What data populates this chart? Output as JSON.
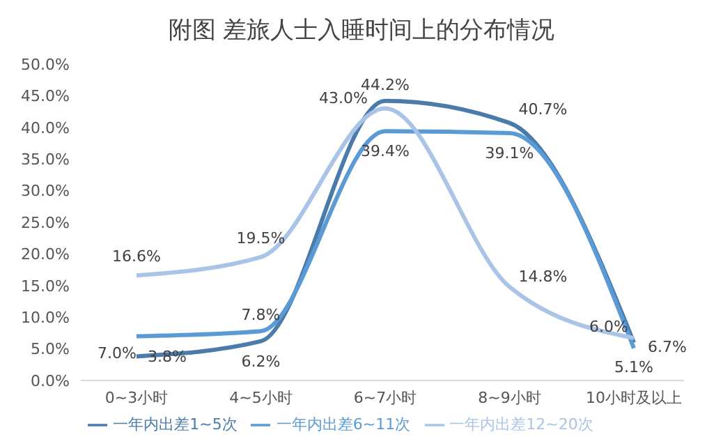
{
  "chart_data": {
    "type": "line",
    "title": "附图 差旅人士入睡时间上的分布情况",
    "categories": [
      "0~3小时",
      "4~5小时",
      "6~7小时",
      "8~9小时",
      "10小时及以上"
    ],
    "series": [
      {
        "name": "一年内出差1~5次",
        "color": "#4a7bab",
        "values": [
          3.8,
          6.2,
          44.2,
          40.7,
          6.0
        ],
        "value_labels": [
          "3.8%",
          "6.2%",
          "44.2%",
          "40.7%",
          "6.0%"
        ]
      },
      {
        "name": "一年内出差6~11次",
        "color": "#5b9bd5",
        "values": [
          7.0,
          7.8,
          39.4,
          39.1,
          5.1
        ],
        "value_labels": [
          "7.0%",
          "7.8%",
          "39.4%",
          "39.1%",
          "5.1%"
        ]
      },
      {
        "name": "一年内出差12~20次",
        "color": "#a9c4e6",
        "values": [
          16.6,
          19.5,
          43.0,
          14.8,
          6.7
        ],
        "value_labels": [
          "16.6%",
          "19.5%",
          "43.0%",
          "14.8%",
          "6.7%"
        ]
      }
    ],
    "ylim": [
      0,
      50
    ],
    "yticks": [
      {
        "value": 0,
        "label": "0.0%"
      },
      {
        "value": 5,
        "label": "5.0%"
      },
      {
        "value": 10,
        "label": "10.0%"
      },
      {
        "value": 15,
        "label": "15.0%"
      },
      {
        "value": 20,
        "label": "20.0%"
      },
      {
        "value": 25,
        "label": "25.0%"
      },
      {
        "value": 30,
        "label": "30.0%"
      },
      {
        "value": 35,
        "label": "35.0%"
      },
      {
        "value": 40,
        "label": "40.0%"
      },
      {
        "value": 45,
        "label": "45.0%"
      },
      {
        "value": 50,
        "label": "50.0%"
      }
    ],
    "legend": "bottom",
    "grid": false,
    "marker": "none"
  }
}
